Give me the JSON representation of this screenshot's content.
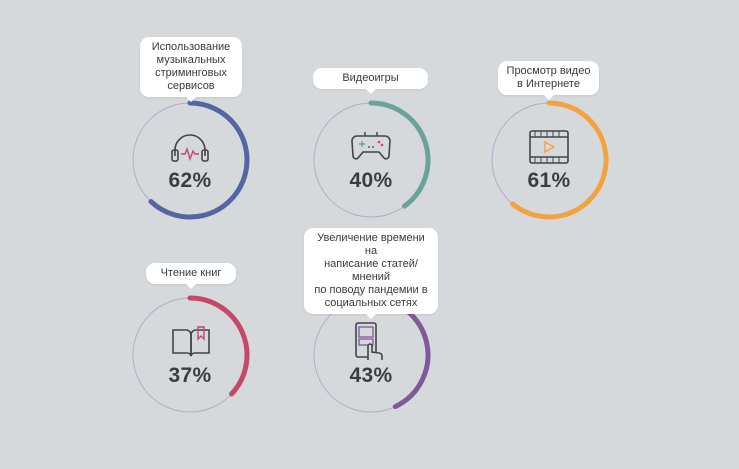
{
  "chart_data": {
    "type": "progress-rings",
    "items": [
      {
        "label": "Использование\nмузыкальных\nстриминговых\nсервисов",
        "value": 62,
        "display": "62%",
        "icon": "headphones-icon",
        "color": "#5466a1"
      },
      {
        "label": "Видеоигры",
        "value": 40,
        "display": "40%",
        "icon": "gamepad-icon",
        "color": "#6aa39a"
      },
      {
        "label": "Просмотр видео\nв Интернете",
        "value": 61,
        "display": "61%",
        "icon": "video-player-icon",
        "color": "#f2a341"
      },
      {
        "label": "Чтение книг",
        "value": 37,
        "display": "37%",
        "icon": "book-icon",
        "color": "#c4486a"
      },
      {
        "label": "Увеличение времени на\nнаписание статей/мнений\nпо поводу пандемии в\nсоциальных сетях",
        "value": 43,
        "display": "43%",
        "icon": "smartphone-tap-icon",
        "color": "#7f5a9b"
      }
    ]
  },
  "colors": {
    "background": "#d6d9dc",
    "track": "#b9a8c9",
    "text": "#3d3d3d",
    "bubble": "#ffffff"
  }
}
